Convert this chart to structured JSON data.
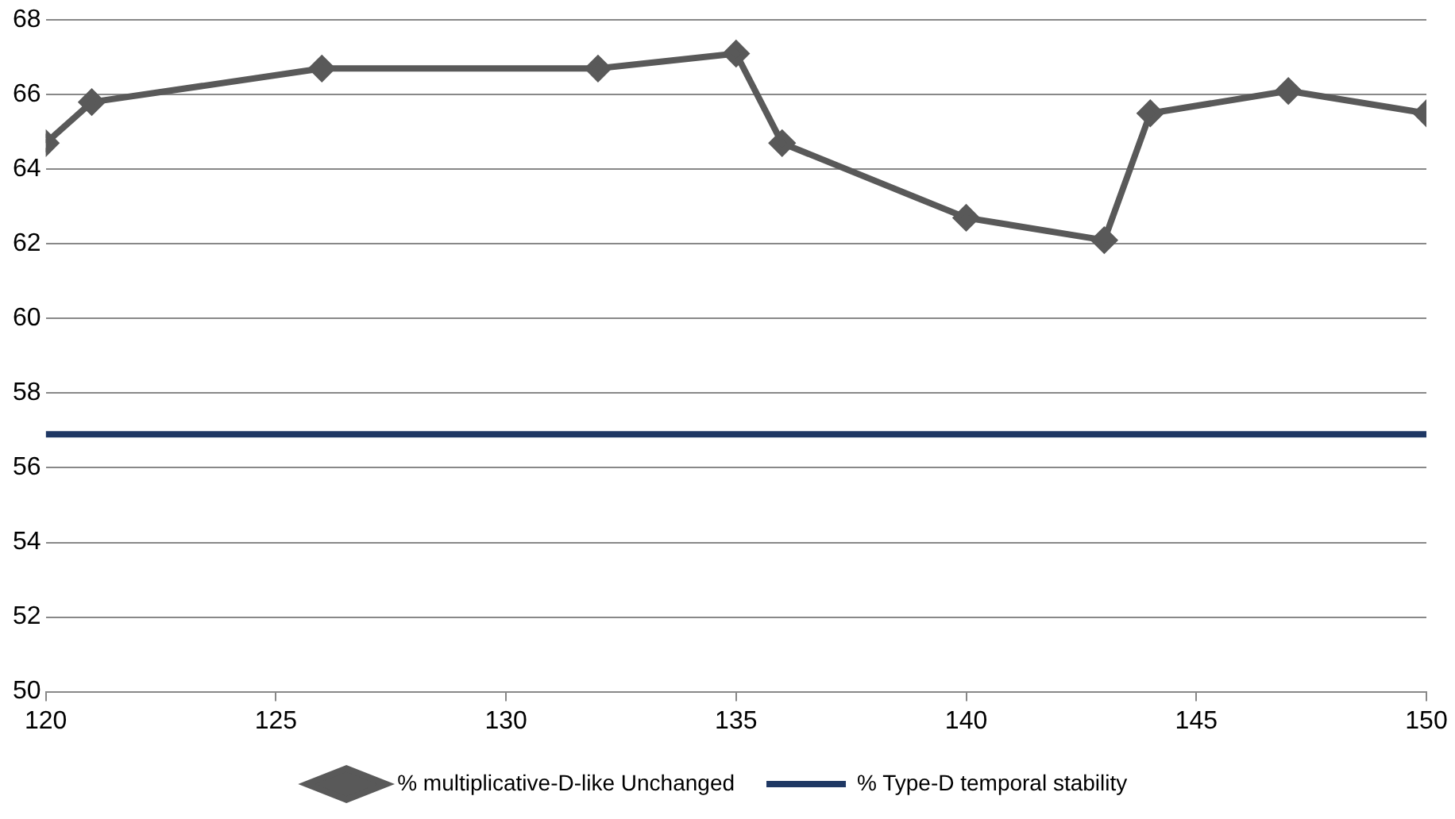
{
  "chart_data": {
    "type": "line",
    "xlim": [
      120,
      150
    ],
    "xticks": [
      120,
      125,
      130,
      135,
      140,
      145,
      150
    ],
    "ylim": [
      50,
      68
    ],
    "yticks": [
      50,
      52,
      54,
      56,
      58,
      60,
      62,
      64,
      66,
      68
    ],
    "grid": "y",
    "legend": "bottom",
    "series": [
      {
        "name": "% multiplicative-D-like Unchanged",
        "color": "#595959",
        "marker": "diamond",
        "x": [
          120,
          121,
          126,
          132,
          135,
          136,
          140,
          143,
          144,
          147,
          150
        ],
        "values": [
          64.7,
          65.8,
          66.7,
          66.7,
          67.1,
          64.7,
          62.7,
          62.1,
          65.5,
          66.1,
          65.5
        ]
      },
      {
        "name": "% Type-D temporal stability",
        "color": "#1f3864",
        "marker": "none",
        "x": [
          120,
          150
        ],
        "values": [
          56.9,
          56.9
        ]
      }
    ]
  }
}
